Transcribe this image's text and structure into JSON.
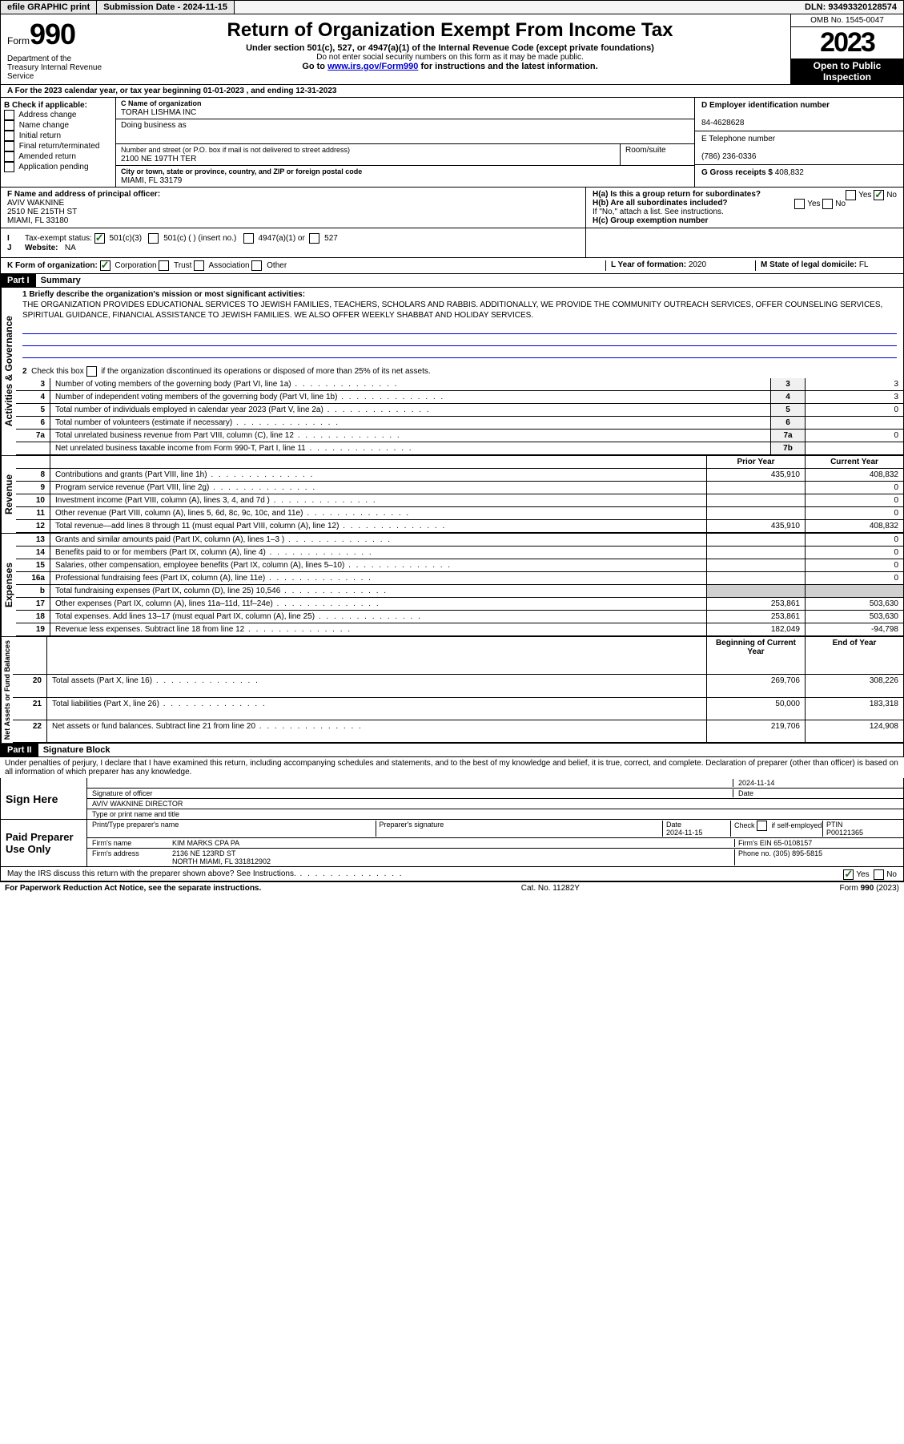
{
  "topbar": {
    "efile": "efile GRAPHIC print",
    "subdate_label": "Submission Date - ",
    "subdate": "2024-11-15",
    "dln": "DLN: 93493320128574"
  },
  "header": {
    "form_label": "Form",
    "form_num": "990",
    "title": "Return of Organization Exempt From Income Tax",
    "sub1": "Under section 501(c), 527, or 4947(a)(1) of the Internal Revenue Code (except private foundations)",
    "sub2": "Do not enter social security numbers on this form as it may be made public.",
    "sub3": "Go to www.irs.gov/Form990 for instructions and the latest information.",
    "omb": "OMB No. 1545-0047",
    "year": "2023",
    "open": "Open to Public Inspection",
    "dept": "Department of the Treasury Internal Revenue Service"
  },
  "lineA": "A For the 2023 calendar year, or tax year beginning 01-01-2023   , and ending 12-31-2023",
  "B": {
    "label": "B Check if applicable:",
    "opts": [
      "Address change",
      "Name change",
      "Initial return",
      "Final return/terminated",
      "Amended return",
      "Application pending"
    ]
  },
  "C": {
    "name_label": "C Name of organization",
    "name": "TORAH LISHMA INC",
    "dba": "Doing business as",
    "addr_label": "Number and street (or P.O. box if mail is not delivered to street address)",
    "room": "Room/suite",
    "addr": "2100 NE 197TH TER",
    "city_label": "City or town, state or province, country, and ZIP or foreign postal code",
    "city": "MIAMI, FL  33179"
  },
  "D": {
    "label": "D Employer identification number",
    "val": "84-4628628"
  },
  "E": {
    "label": "E Telephone number",
    "val": "(786) 236-0336"
  },
  "G": {
    "label": "G Gross receipts $",
    "val": "408,832"
  },
  "F": {
    "label": "F  Name and address of principal officer:",
    "name": "AVIV WAKNINE",
    "addr1": "2510 NE 215TH ST",
    "addr2": "MIAMI, FL  33180"
  },
  "Ha": "H(a)  Is this a group return for subordinates?",
  "Hb": "H(b)  Are all subordinates included?",
  "Hb2": "If \"No,\" attach a list. See instructions.",
  "Hc": "H(c)  Group exemption number",
  "yes": "Yes",
  "no": "No",
  "I": {
    "label": "Tax-exempt status:",
    "o1": "501(c)(3)",
    "o2": "501(c) (  ) (insert no.)",
    "o3": "4947(a)(1) or",
    "o4": "527"
  },
  "J": {
    "label": "Website:",
    "val": "NA"
  },
  "K": {
    "label": "K Form of organization:",
    "o1": "Corporation",
    "o2": "Trust",
    "o3": "Association",
    "o4": "Other"
  },
  "L": {
    "label": "L Year of formation:",
    "val": "2020"
  },
  "M": {
    "label": "M State of legal domicile:",
    "val": "FL"
  },
  "part1": {
    "hdr": "Part I",
    "title": "Summary"
  },
  "mission_label": "1   Briefly describe the organization's mission or most significant activities:",
  "mission": "THE ORGANIZATION PROVIDES EDUCATIONAL SERVICES TO JEWISH FAMILIES, TEACHERS, SCHOLARS AND RABBIS. ADDITIONALLY, WE PROVIDE THE COMMUNITY OUTREACH SERVICES, OFFER COUNSELING SERVICES, SPIRITUAL GUIDANCE, FINANCIAL ASSISTANCE TO JEWISH FAMILIES. WE ALSO OFFER WEEKLY SHABBAT AND HOLIDAY SERVICES.",
  "q2": "Check this box        if the organization discontinued its operations or disposed of more than 25% of its net assets.",
  "rows_gov": [
    {
      "n": "3",
      "t": "Number of voting members of the governing body (Part VI, line 1a)",
      "rn": "3",
      "v": "3"
    },
    {
      "n": "4",
      "t": "Number of independent voting members of the governing body (Part VI, line 1b)",
      "rn": "4",
      "v": "3"
    },
    {
      "n": "5",
      "t": "Total number of individuals employed in calendar year 2023 (Part V, line 2a)",
      "rn": "5",
      "v": "0"
    },
    {
      "n": "6",
      "t": "Total number of volunteers (estimate if necessary)",
      "rn": "6",
      "v": ""
    },
    {
      "n": "7a",
      "t": "Total unrelated business revenue from Part VIII, column (C), line 12",
      "rn": "7a",
      "v": "0"
    },
    {
      "n": "",
      "t": "Net unrelated business taxable income from Form 990-T, Part I, line 11",
      "rn": "7b",
      "v": ""
    }
  ],
  "py": "Prior Year",
  "cy": "Current Year",
  "rows_rev": [
    {
      "n": "8",
      "t": "Contributions and grants (Part VIII, line 1h)",
      "p": "435,910",
      "c": "408,832"
    },
    {
      "n": "9",
      "t": "Program service revenue (Part VIII, line 2g)",
      "p": "",
      "c": "0"
    },
    {
      "n": "10",
      "t": "Investment income (Part VIII, column (A), lines 3, 4, and 7d )",
      "p": "",
      "c": "0"
    },
    {
      "n": "11",
      "t": "Other revenue (Part VIII, column (A), lines 5, 6d, 8c, 9c, 10c, and 11e)",
      "p": "",
      "c": "0"
    },
    {
      "n": "12",
      "t": "Total revenue—add lines 8 through 11 (must equal Part VIII, column (A), line 12)",
      "p": "435,910",
      "c": "408,832"
    }
  ],
  "rows_exp": [
    {
      "n": "13",
      "t": "Grants and similar amounts paid (Part IX, column (A), lines 1–3 )",
      "p": "",
      "c": "0"
    },
    {
      "n": "14",
      "t": "Benefits paid to or for members (Part IX, column (A), line 4)",
      "p": "",
      "c": "0"
    },
    {
      "n": "15",
      "t": "Salaries, other compensation, employee benefits (Part IX, column (A), lines 5–10)",
      "p": "",
      "c": "0"
    },
    {
      "n": "16a",
      "t": "Professional fundraising fees (Part IX, column (A), line 11e)",
      "p": "",
      "c": "0"
    },
    {
      "n": "b",
      "t": "Total fundraising expenses (Part IX, column (D), line 25) 10,546",
      "p": "__SHADE__",
      "c": "__SHADE__"
    },
    {
      "n": "17",
      "t": "Other expenses (Part IX, column (A), lines 11a–11d, 11f–24e)",
      "p": "253,861",
      "c": "503,630"
    },
    {
      "n": "18",
      "t": "Total expenses. Add lines 13–17 (must equal Part IX, column (A), line 25)",
      "p": "253,861",
      "c": "503,630"
    },
    {
      "n": "19",
      "t": "Revenue less expenses. Subtract line 18 from line 12",
      "p": "182,049",
      "c": "-94,798"
    }
  ],
  "bcy": "Beginning of Current Year",
  "ey": "End of Year",
  "rows_net": [
    {
      "n": "20",
      "t": "Total assets (Part X, line 16)",
      "p": "269,706",
      "c": "308,226"
    },
    {
      "n": "21",
      "t": "Total liabilities (Part X, line 26)",
      "p": "50,000",
      "c": "183,318"
    },
    {
      "n": "22",
      "t": "Net assets or fund balances. Subtract line 21 from line 20",
      "p": "219,706",
      "c": "124,908"
    }
  ],
  "vert": {
    "gov": "Activities & Governance",
    "rev": "Revenue",
    "exp": "Expenses",
    "net": "Net Assets or Fund Balances"
  },
  "part2": {
    "hdr": "Part II",
    "title": "Signature Block"
  },
  "perjury": "Under penalties of perjury, I declare that I have examined this return, including accompanying schedules and statements, and to the best of my knowledge and belief, it is true, correct, and complete. Declaration of preparer (other than officer) is based on all information of which preparer has any knowledge.",
  "sign": {
    "here": "Sign Here",
    "sig_label": "Signature of officer",
    "date_label": "Date",
    "date1": "2024-11-14",
    "name": "AVIV WAKNINE  DIRECTOR",
    "name_label": "Type or print name and title"
  },
  "prep": {
    "label": "Paid Preparer Use Only",
    "h1": "Print/Type preparer's name",
    "h2": "Preparer's signature",
    "h3": "Date",
    "h4": "Check        if self-employed",
    "h5": "PTIN",
    "date": "2024-11-15",
    "ptin": "P00121365",
    "firm_label": "Firm's name",
    "firm": "KIM MARKS CPA PA",
    "ein_label": "Firm's EIN",
    "ein": "65-0108157",
    "addr_label": "Firm's address",
    "addr1": "2136 NE 123RD ST",
    "addr2": "NORTH MIAMI, FL  331812902",
    "phone_label": "Phone no.",
    "phone": "(305) 895-5815"
  },
  "discuss": "May the IRS discuss this return with the preparer shown above? See Instructions.",
  "footer": {
    "pra": "For Paperwork Reduction Act Notice, see the separate instructions.",
    "cat": "Cat. No. 11282Y",
    "form": "Form 990 (2023)"
  }
}
